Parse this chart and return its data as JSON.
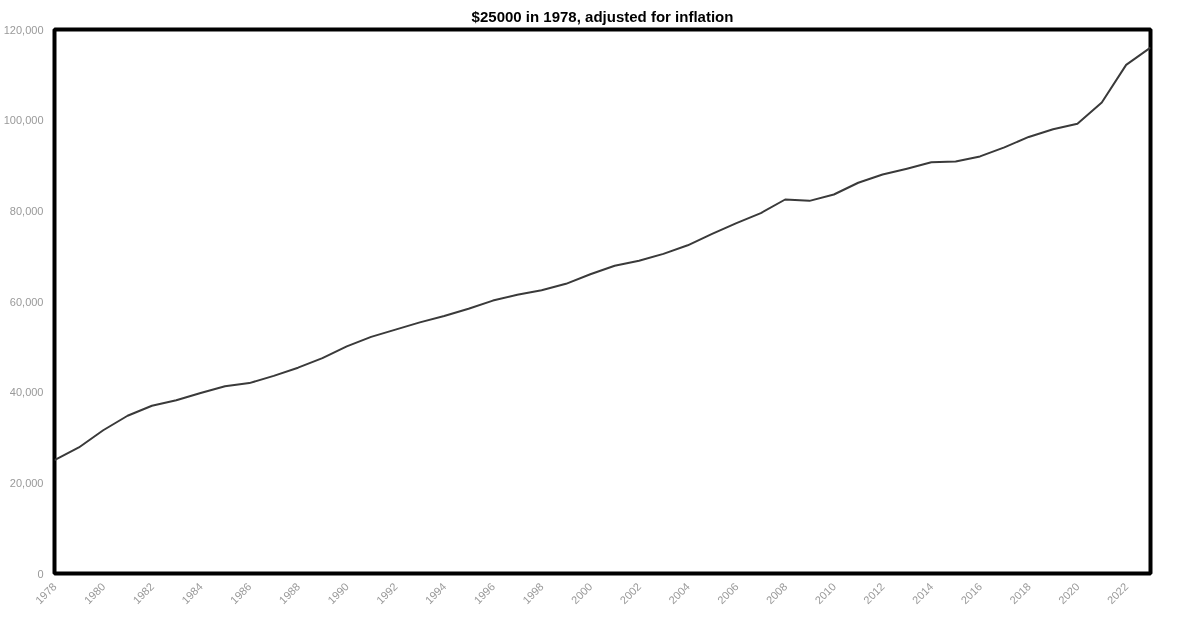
{
  "chart_data": {
    "type": "line",
    "title": "$25000 in 1978, adjusted for inflation",
    "x": [
      1978,
      1979,
      1980,
      1981,
      1982,
      1983,
      1984,
      1985,
      1986,
      1987,
      1988,
      1989,
      1990,
      1991,
      1992,
      1993,
      1994,
      1995,
      1996,
      1997,
      1998,
      1999,
      2000,
      2001,
      2002,
      2003,
      2004,
      2005,
      2006,
      2007,
      2008,
      2009,
      2010,
      2011,
      2012,
      2013,
      2014,
      2015,
      2016,
      2017,
      2018,
      2019,
      2020,
      2021,
      2022,
      2023
    ],
    "series": [
      {
        "color": "#3a3a3a",
        "values": [
          25000,
          27800,
          31600,
          34800,
          37000,
          38200,
          39800,
          41300,
          42000,
          43600,
          45400,
          47500,
          50100,
          52200,
          53800,
          55400,
          56800,
          58400,
          60200,
          61500,
          62500,
          63900,
          66000,
          67900,
          69000,
          70500,
          72400,
          74900,
          77300,
          79500,
          82500,
          82200,
          83600,
          86200,
          88000,
          89300,
          90700,
          90900,
          92000,
          94000,
          96300,
          98000,
          99200,
          103900,
          112200,
          116000
        ]
      }
    ],
    "xlim": [
      1978,
      2023
    ],
    "xticks": [
      1978,
      1980,
      1982,
      1984,
      1986,
      1988,
      1990,
      1992,
      1994,
      1996,
      1998,
      2000,
      2002,
      2004,
      2006,
      2008,
      2010,
      2012,
      2014,
      2016,
      2018,
      2020,
      2022
    ],
    "ylim": [
      0,
      120000
    ],
    "yticks": [
      {
        "value": 0,
        "label": "0"
      },
      {
        "value": 20000,
        "label": "20,000"
      },
      {
        "value": 40000,
        "label": "40,000"
      },
      {
        "value": 60000,
        "label": "60,000"
      },
      {
        "value": 80000,
        "label": "80,000"
      },
      {
        "value": 100000,
        "label": "100,000"
      },
      {
        "value": 120000,
        "label": "120,000"
      }
    ],
    "grid": false,
    "marker": "none",
    "line_style": "solid"
  }
}
